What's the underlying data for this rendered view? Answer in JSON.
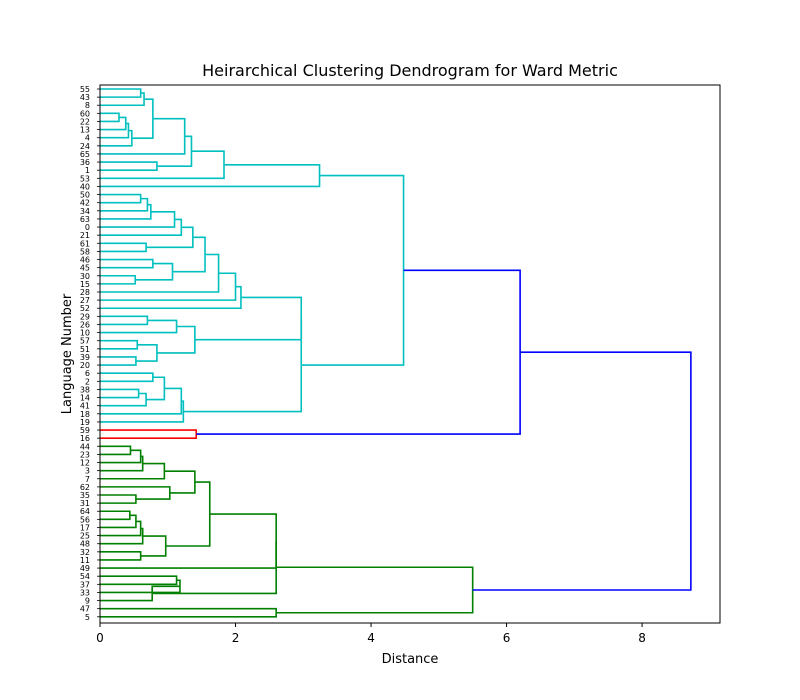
{
  "chart_data": {
    "type": "dendrogram",
    "orientation": "horizontal-left",
    "title": "Heirarchical Clustering Dendrogram for Ward Metric",
    "xlabel": "Distance",
    "ylabel": "Language Number",
    "xlim": [
      0,
      9.15
    ],
    "xticks": [
      "0",
      "2",
      "4",
      "6",
      "8"
    ],
    "grid": false,
    "leaves": [
      "55",
      "43",
      "8",
      "60",
      "22",
      "13",
      "4",
      "24",
      "65",
      "36",
      "1",
      "53",
      "40",
      "50",
      "42",
      "34",
      "63",
      "0",
      "21",
      "61",
      "58",
      "46",
      "45",
      "30",
      "15",
      "28",
      "27",
      "52",
      "29",
      "26",
      "10",
      "57",
      "51",
      "39",
      "20",
      "6",
      "2",
      "38",
      "14",
      "41",
      "18",
      "19",
      "59",
      "16",
      "44",
      "23",
      "12",
      "3",
      "7",
      "62",
      "35",
      "31",
      "64",
      "56",
      "17",
      "25",
      "48",
      "32",
      "11",
      "49",
      "54",
      "37",
      "33",
      "9",
      "47",
      "5"
    ],
    "colors": {
      "cyan": "#00bfbf",
      "red": "#ff0000",
      "green": "#008000",
      "blue": "#0000ff"
    },
    "merges": [
      {
        "a": "L:55",
        "b": "L:43",
        "h": 0.6,
        "color": "cyan"
      },
      {
        "a": "N:0",
        "b": "L:8",
        "h": 0.65,
        "color": "cyan"
      },
      {
        "a": "L:60",
        "b": "L:22",
        "h": 0.28,
        "color": "cyan"
      },
      {
        "a": "N:2",
        "b": "L:13",
        "h": 0.38,
        "color": "cyan"
      },
      {
        "a": "N:3",
        "b": "L:4",
        "h": 0.42,
        "color": "cyan"
      },
      {
        "a": "N:4",
        "b": "L:24",
        "h": 0.47,
        "color": "cyan"
      },
      {
        "a": "N:1",
        "b": "N:5",
        "h": 0.78,
        "color": "cyan"
      },
      {
        "a": "N:6",
        "b": "L:65",
        "h": 1.25,
        "color": "cyan"
      },
      {
        "a": "L:36",
        "b": "L:1",
        "h": 0.84,
        "color": "cyan"
      },
      {
        "a": "N:7",
        "b": "N:8",
        "h": 1.35,
        "color": "cyan"
      },
      {
        "a": "N:9",
        "b": "L:53",
        "h": 1.83,
        "color": "cyan"
      },
      {
        "a": "N:10",
        "b": "L:40",
        "h": 3.24,
        "color": "cyan"
      },
      {
        "a": "L:50",
        "b": "L:42",
        "h": 0.6,
        "color": "cyan"
      },
      {
        "a": "N:12",
        "b": "L:34",
        "h": 0.7,
        "color": "cyan"
      },
      {
        "a": "N:13",
        "b": "L:63",
        "h": 0.75,
        "color": "cyan"
      },
      {
        "a": "N:14",
        "b": "L:0",
        "h": 1.1,
        "color": "cyan"
      },
      {
        "a": "N:15",
        "b": "L:21",
        "h": 1.2,
        "color": "cyan"
      },
      {
        "a": "L:61",
        "b": "L:58",
        "h": 0.68,
        "color": "cyan"
      },
      {
        "a": "N:16",
        "b": "N:17",
        "h": 1.37,
        "color": "cyan"
      },
      {
        "a": "L:46",
        "b": "L:45",
        "h": 0.78,
        "color": "cyan"
      },
      {
        "a": "L:30",
        "b": "L:15",
        "h": 0.52,
        "color": "cyan"
      },
      {
        "a": "N:19",
        "b": "N:20",
        "h": 1.07,
        "color": "cyan"
      },
      {
        "a": "N:18",
        "b": "N:21",
        "h": 1.55,
        "color": "cyan"
      },
      {
        "a": "N:22",
        "b": "L:28",
        "h": 1.75,
        "color": "cyan"
      },
      {
        "a": "N:23",
        "b": "L:27",
        "h": 2.0,
        "color": "cyan"
      },
      {
        "a": "N:24",
        "b": "L:52",
        "h": 2.08,
        "color": "cyan"
      },
      {
        "a": "L:29",
        "b": "L:26",
        "h": 0.7,
        "color": "cyan"
      },
      {
        "a": "N:26",
        "b": "L:10",
        "h": 1.13,
        "color": "cyan"
      },
      {
        "a": "L:57",
        "b": "L:51",
        "h": 0.55,
        "color": "cyan"
      },
      {
        "a": "L:39",
        "b": "L:20",
        "h": 0.53,
        "color": "cyan"
      },
      {
        "a": "N:28",
        "b": "N:29",
        "h": 0.84,
        "color": "cyan"
      },
      {
        "a": "N:27",
        "b": "N:30",
        "h": 1.4,
        "color": "cyan"
      },
      {
        "a": "N:25",
        "b": "N:31",
        "h": 2.97,
        "color": "cyan"
      },
      {
        "a": "L:6",
        "b": "L:2",
        "h": 0.78,
        "color": "cyan"
      },
      {
        "a": "L:38",
        "b": "L:14",
        "h": 0.57,
        "color": "cyan"
      },
      {
        "a": "N:34",
        "b": "L:41",
        "h": 0.68,
        "color": "cyan"
      },
      {
        "a": "N:33",
        "b": "N:35",
        "h": 0.95,
        "color": "cyan"
      },
      {
        "a": "N:36",
        "b": "L:18",
        "h": 1.2,
        "color": "cyan"
      },
      {
        "a": "N:37",
        "b": "L:19",
        "h": 1.23,
        "color": "cyan"
      },
      {
        "a": "N:32",
        "b": "N:38",
        "h": 2.97,
        "color": "cyan"
      },
      {
        "a": "N:11",
        "b": "N:39",
        "h": 4.48,
        "color": "cyan"
      },
      {
        "a": "L:59",
        "b": "L:16",
        "h": 1.42,
        "color": "red"
      },
      {
        "a": "N:40",
        "b": "N:41",
        "h": 6.2,
        "color": "blue"
      },
      {
        "a": "L:44",
        "b": "L:23",
        "h": 0.45,
        "color": "green"
      },
      {
        "a": "N:43",
        "b": "L:12",
        "h": 0.6,
        "color": "green"
      },
      {
        "a": "N:44",
        "b": "L:3",
        "h": 0.63,
        "color": "green"
      },
      {
        "a": "N:45",
        "b": "L:7",
        "h": 0.95,
        "color": "green"
      },
      {
        "a": "L:35",
        "b": "L:31",
        "h": 0.53,
        "color": "green"
      },
      {
        "a": "L:62",
        "b": "N:47",
        "h": 1.03,
        "color": "green"
      },
      {
        "a": "N:46",
        "b": "N:48",
        "h": 1.4,
        "color": "green"
      },
      {
        "a": "L:64",
        "b": "L:56",
        "h": 0.44,
        "color": "green"
      },
      {
        "a": "N:50",
        "b": "L:17",
        "h": 0.53,
        "color": "green"
      },
      {
        "a": "N:51",
        "b": "L:25",
        "h": 0.6,
        "color": "green"
      },
      {
        "a": "N:52",
        "b": "L:48",
        "h": 0.63,
        "color": "green"
      },
      {
        "a": "L:32",
        "b": "L:11",
        "h": 0.6,
        "color": "green"
      },
      {
        "a": "N:53",
        "b": "N:54",
        "h": 0.97,
        "color": "green"
      },
      {
        "a": "N:49",
        "b": "N:55",
        "h": 1.62,
        "color": "green"
      },
      {
        "a": "N:56",
        "b": "L:49",
        "h": 2.6,
        "color": "green"
      },
      {
        "a": "L:54",
        "b": "L:37",
        "h": 1.13,
        "color": "green"
      },
      {
        "a": "N:58",
        "b": "L:33",
        "h": 1.18,
        "color": "green"
      },
      {
        "a": "L:9",
        "b": "N:59",
        "h": 0.77,
        "color": "green"
      },
      {
        "a": "N:57",
        "b": "N:60",
        "h": 2.6,
        "color": "green"
      },
      {
        "a": "L:47",
        "b": "L:5",
        "h": 2.6,
        "color": "green"
      },
      {
        "a": "N:61",
        "b": "N:62",
        "h": 5.5,
        "color": "green"
      },
      {
        "a": "N:42",
        "b": "N:63",
        "h": 8.72,
        "color": "blue"
      }
    ]
  }
}
